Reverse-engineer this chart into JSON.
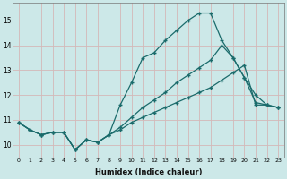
{
  "xlabel": "Humidex (Indice chaleur)",
  "ylabel": "",
  "bg_color": "#cce8e8",
  "grid_color_h": "#d4b8b8",
  "grid_color_v": "#d4b8b8",
  "line_color": "#1a6b6b",
  "xlim": [
    -0.5,
    23.5
  ],
  "ylim": [
    9.5,
    15.7
  ],
  "xticks": [
    0,
    1,
    2,
    3,
    4,
    5,
    6,
    7,
    8,
    9,
    10,
    11,
    12,
    13,
    14,
    15,
    16,
    17,
    18,
    19,
    20,
    21,
    22,
    23
  ],
  "yticks": [
    10,
    11,
    12,
    13,
    14,
    15
  ],
  "line1_x": [
    0,
    1,
    2,
    3,
    4,
    5,
    6,
    7,
    8,
    9,
    10,
    11,
    12,
    13,
    14,
    15,
    16,
    17,
    18,
    19,
    20,
    21,
    22,
    23
  ],
  "line1_y": [
    10.9,
    10.6,
    10.4,
    10.5,
    10.5,
    9.8,
    10.2,
    10.1,
    10.4,
    11.6,
    12.5,
    13.5,
    13.7,
    14.2,
    14.6,
    15.0,
    15.3,
    15.3,
    14.2,
    13.5,
    12.7,
    11.7,
    11.6,
    11.5
  ],
  "line2_x": [
    0,
    1,
    2,
    3,
    4,
    5,
    6,
    7,
    8,
    9,
    10,
    11,
    12,
    13,
    14,
    15,
    16,
    17,
    18,
    19,
    20,
    21,
    22,
    23
  ],
  "line2_y": [
    10.9,
    10.6,
    10.4,
    10.5,
    10.5,
    9.8,
    10.2,
    10.1,
    10.4,
    10.7,
    11.1,
    11.5,
    11.8,
    12.1,
    12.5,
    12.8,
    13.1,
    13.4,
    14.0,
    13.5,
    12.7,
    12.0,
    11.6,
    11.5
  ],
  "line3_x": [
    0,
    1,
    2,
    3,
    4,
    5,
    6,
    7,
    8,
    9,
    10,
    11,
    12,
    13,
    14,
    15,
    16,
    17,
    18,
    19,
    20,
    21,
    22,
    23
  ],
  "line3_y": [
    10.9,
    10.6,
    10.4,
    10.5,
    10.5,
    9.8,
    10.2,
    10.1,
    10.4,
    10.6,
    10.9,
    11.1,
    11.3,
    11.5,
    11.7,
    11.9,
    12.1,
    12.3,
    12.6,
    12.9,
    13.2,
    11.6,
    11.6,
    11.5
  ]
}
